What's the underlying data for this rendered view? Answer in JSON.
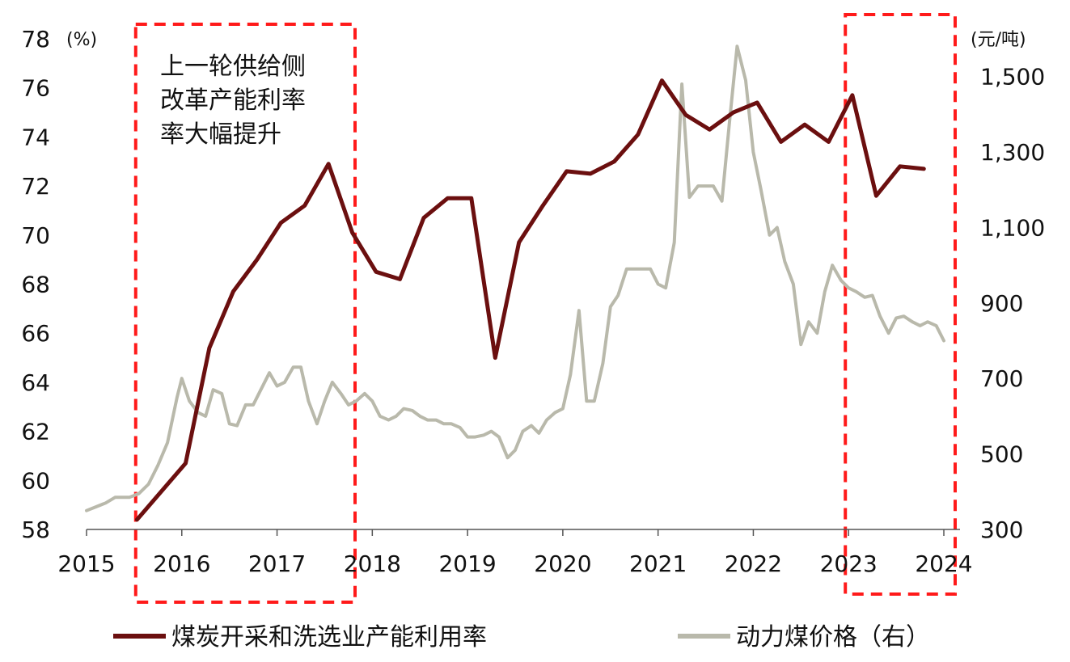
{
  "chart_data": {
    "type": "line",
    "left_unit": "(%)",
    "right_unit": "(元/吨)",
    "left_axis": {
      "min": 58,
      "max": 78,
      "ticks": [
        "78",
        "76",
        "74",
        "72",
        "70",
        "68",
        "66",
        "64",
        "62",
        "60",
        "58"
      ]
    },
    "right_axis": {
      "min": 300,
      "max": 1600,
      "ticks": [
        "1,500",
        "1,300",
        "1,100",
        "900",
        "700",
        "500",
        "300"
      ]
    },
    "x_axis": {
      "min": 2015,
      "max": 2024,
      "ticks": [
        "2015",
        "2016",
        "2017",
        "2018",
        "2019",
        "2020",
        "2021",
        "2022",
        "2023",
        "2024"
      ]
    },
    "annotation_lines": [
      "上一轮供给侧",
      "改革产能利率",
      "率大幅提升"
    ],
    "highlight_ranges": [
      {
        "from": 2015.55,
        "to": 2017.7
      },
      {
        "from": 2023.0,
        "to": 2024.0
      }
    ],
    "series": [
      {
        "name": "煤炭开采和洗选业产能利用率",
        "axis": "left",
        "color": "#6b0f0f",
        "points": [
          [
            2015.53,
            58.4
          ],
          [
            2016.04,
            60.7
          ],
          [
            2016.29,
            65.4
          ],
          [
            2016.54,
            67.7
          ],
          [
            2016.79,
            69.0
          ],
          [
            2017.04,
            70.5
          ],
          [
            2017.29,
            71.2
          ],
          [
            2017.54,
            72.9
          ],
          [
            2017.79,
            70.1
          ],
          [
            2018.04,
            68.5
          ],
          [
            2018.29,
            68.2
          ],
          [
            2018.54,
            70.7
          ],
          [
            2018.79,
            71.5
          ],
          [
            2019.04,
            71.5
          ],
          [
            2019.29,
            65.0
          ],
          [
            2019.54,
            69.7
          ],
          [
            2019.79,
            71.2
          ],
          [
            2020.04,
            72.6
          ],
          [
            2020.29,
            72.5
          ],
          [
            2020.54,
            73.0
          ],
          [
            2020.79,
            74.1
          ],
          [
            2021.04,
            76.3
          ],
          [
            2021.29,
            74.9
          ],
          [
            2021.54,
            74.3
          ],
          [
            2021.79,
            75.0
          ],
          [
            2022.04,
            75.4
          ],
          [
            2022.29,
            73.8
          ],
          [
            2022.54,
            74.5
          ],
          [
            2022.79,
            73.8
          ],
          [
            2023.04,
            75.7
          ],
          [
            2023.29,
            71.6
          ],
          [
            2023.54,
            72.8
          ],
          [
            2023.79,
            72.7
          ]
        ]
      },
      {
        "name": "动力煤价格（右）",
        "axis": "right",
        "color": "#b9b9ab",
        "points": [
          [
            2015.0,
            350
          ],
          [
            2015.1,
            360
          ],
          [
            2015.2,
            370
          ],
          [
            2015.3,
            385
          ],
          [
            2015.45,
            385
          ],
          [
            2015.55,
            395
          ],
          [
            2015.65,
            420
          ],
          [
            2015.75,
            470
          ],
          [
            2015.85,
            530
          ],
          [
            2015.95,
            650
          ],
          [
            2016.0,
            700
          ],
          [
            2016.08,
            640
          ],
          [
            2016.17,
            610
          ],
          [
            2016.25,
            600
          ],
          [
            2016.33,
            670
          ],
          [
            2016.42,
            660
          ],
          [
            2016.5,
            580
          ],
          [
            2016.58,
            575
          ],
          [
            2016.67,
            630
          ],
          [
            2016.75,
            630
          ],
          [
            2016.83,
            670
          ],
          [
            2016.92,
            715
          ],
          [
            2017.0,
            680
          ],
          [
            2017.08,
            690
          ],
          [
            2017.17,
            730
          ],
          [
            2017.25,
            730
          ],
          [
            2017.33,
            640
          ],
          [
            2017.42,
            580
          ],
          [
            2017.5,
            640
          ],
          [
            2017.58,
            690
          ],
          [
            2017.67,
            660
          ],
          [
            2017.75,
            630
          ],
          [
            2017.83,
            640
          ],
          [
            2017.92,
            660
          ],
          [
            2018.0,
            640
          ],
          [
            2018.08,
            600
          ],
          [
            2018.17,
            590
          ],
          [
            2018.25,
            600
          ],
          [
            2018.33,
            620
          ],
          [
            2018.42,
            615
          ],
          [
            2018.5,
            600
          ],
          [
            2018.58,
            590
          ],
          [
            2018.67,
            590
          ],
          [
            2018.75,
            580
          ],
          [
            2018.83,
            580
          ],
          [
            2018.92,
            570
          ],
          [
            2019.0,
            545
          ],
          [
            2019.08,
            545
          ],
          [
            2019.17,
            550
          ],
          [
            2019.25,
            560
          ],
          [
            2019.33,
            545
          ],
          [
            2019.42,
            490
          ],
          [
            2019.5,
            510
          ],
          [
            2019.58,
            560
          ],
          [
            2019.67,
            575
          ],
          [
            2019.75,
            555
          ],
          [
            2019.83,
            590
          ],
          [
            2019.92,
            610
          ],
          [
            2020.0,
            620
          ],
          [
            2020.08,
            710
          ],
          [
            2020.17,
            880
          ],
          [
            2020.25,
            640
          ],
          [
            2020.33,
            640
          ],
          [
            2020.42,
            740
          ],
          [
            2020.5,
            890
          ],
          [
            2020.58,
            920
          ],
          [
            2020.67,
            990
          ],
          [
            2020.75,
            990
          ],
          [
            2020.83,
            990
          ],
          [
            2020.92,
            990
          ],
          [
            2021.0,
            950
          ],
          [
            2021.08,
            940
          ],
          [
            2021.17,
            1060
          ],
          [
            2021.25,
            1480
          ],
          [
            2021.33,
            1180
          ],
          [
            2021.42,
            1210
          ],
          [
            2021.5,
            1210
          ],
          [
            2021.58,
            1210
          ],
          [
            2021.67,
            1170
          ],
          [
            2021.75,
            1380
          ],
          [
            2021.83,
            1580
          ],
          [
            2021.92,
            1490
          ],
          [
            2022.0,
            1300
          ],
          [
            2022.08,
            1200
          ],
          [
            2022.17,
            1080
          ],
          [
            2022.25,
            1100
          ],
          [
            2022.33,
            1010
          ],
          [
            2022.42,
            950
          ],
          [
            2022.5,
            790
          ],
          [
            2022.58,
            850
          ],
          [
            2022.67,
            820
          ],
          [
            2022.75,
            930
          ],
          [
            2022.83,
            1000
          ],
          [
            2022.92,
            960
          ],
          [
            2023.0,
            940
          ],
          [
            2023.08,
            930
          ],
          [
            2023.17,
            915
          ],
          [
            2023.25,
            920
          ],
          [
            2023.33,
            865
          ],
          [
            2023.42,
            820
          ],
          [
            2023.5,
            860
          ],
          [
            2023.58,
            865
          ],
          [
            2023.67,
            850
          ],
          [
            2023.75,
            840
          ],
          [
            2023.83,
            850
          ],
          [
            2023.92,
            840
          ],
          [
            2024.0,
            800
          ]
        ]
      }
    ],
    "legend": [
      {
        "label": "煤炭开采和洗选业产能利用率",
        "color": "#6b0f0f"
      },
      {
        "label": "动力煤价格（右）",
        "color": "#b9b9ab"
      }
    ]
  }
}
